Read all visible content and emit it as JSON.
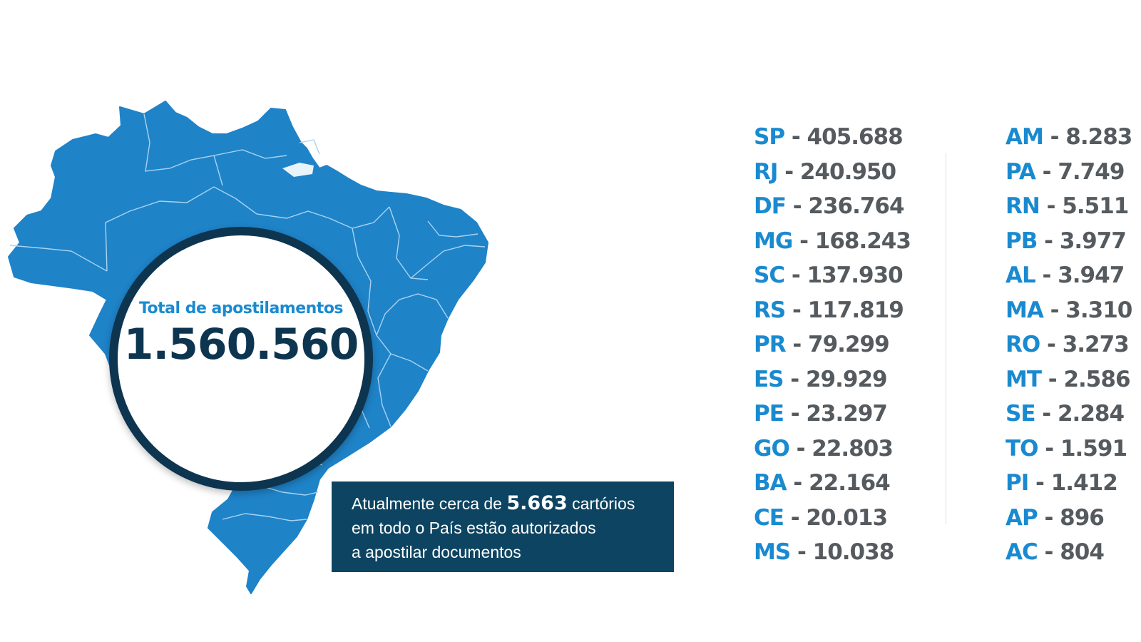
{
  "map": {
    "fill_color": "#1f83c8",
    "border_color": "#a9d3f0"
  },
  "total": {
    "label": "Total de apostilamentos",
    "value": "1.560.560"
  },
  "info": {
    "line1_prefix": "Atualmente cerca de ",
    "line1_highlight": "5.663",
    "line1_suffix": " cartórios",
    "line2": "em todo o País estão autorizados",
    "line3": "a apostilar documentos"
  },
  "colors": {
    "accent_blue": "#1a8ad0",
    "dark_navy": "#0d3550",
    "box_navy": "#0d4461",
    "number_gray": "#555a5f"
  },
  "states_col1": [
    {
      "code": "SP",
      "sep": " - ",
      "value": "405.688"
    },
    {
      "code": "RJ",
      "sep": " - ",
      "value": "240.950"
    },
    {
      "code": "DF",
      "sep": " - ",
      "value": "236.764"
    },
    {
      "code": "MG",
      "sep": " - ",
      "value": "168.243"
    },
    {
      "code": "SC",
      "sep": " - ",
      "value": "137.930"
    },
    {
      "code": "RS",
      "sep": " - ",
      "value": "117.819"
    },
    {
      "code": "PR",
      "sep": " - ",
      "value": "79.299"
    },
    {
      "code": "ES",
      "sep": " - ",
      "value": "29.929"
    },
    {
      "code": "PE",
      "sep": " - ",
      "value": "23.297"
    },
    {
      "code": "GO",
      "sep": " - ",
      "value": "22.803"
    },
    {
      "code": "BA",
      "sep": " - ",
      "value": "22.164"
    },
    {
      "code": "CE",
      "sep": " - ",
      "value": "20.013"
    },
    {
      "code": "MS",
      "sep": " - ",
      "value": "10.038"
    }
  ],
  "states_col2": [
    {
      "code": "AM",
      "sep": " - ",
      "value": "8.283"
    },
    {
      "code": "PA",
      "sep": " - ",
      "value": "7.749"
    },
    {
      "code": "RN",
      "sep": " - ",
      "value": "5.511"
    },
    {
      "code": "PB",
      "sep": " - ",
      "value": "3.977"
    },
    {
      "code": "AL",
      "sep": " - ",
      "value": "3.947"
    },
    {
      "code": "MA",
      "sep": " - ",
      "value": "3.310"
    },
    {
      "code": "RO",
      "sep": " - ",
      "value": "3.273"
    },
    {
      "code": "MT",
      "sep": " - ",
      "value": "2.586"
    },
    {
      "code": "SE",
      "sep": " - ",
      "value": "2.284"
    },
    {
      "code": "TO",
      "sep": " - ",
      "value": "1.591"
    },
    {
      "code": "PI",
      "sep": " - ",
      "value": "1.412"
    },
    {
      "code": "AP",
      "sep": " - ",
      "value": "896"
    },
    {
      "code": "AC",
      "sep": " - ",
      "value": "804"
    }
  ]
}
